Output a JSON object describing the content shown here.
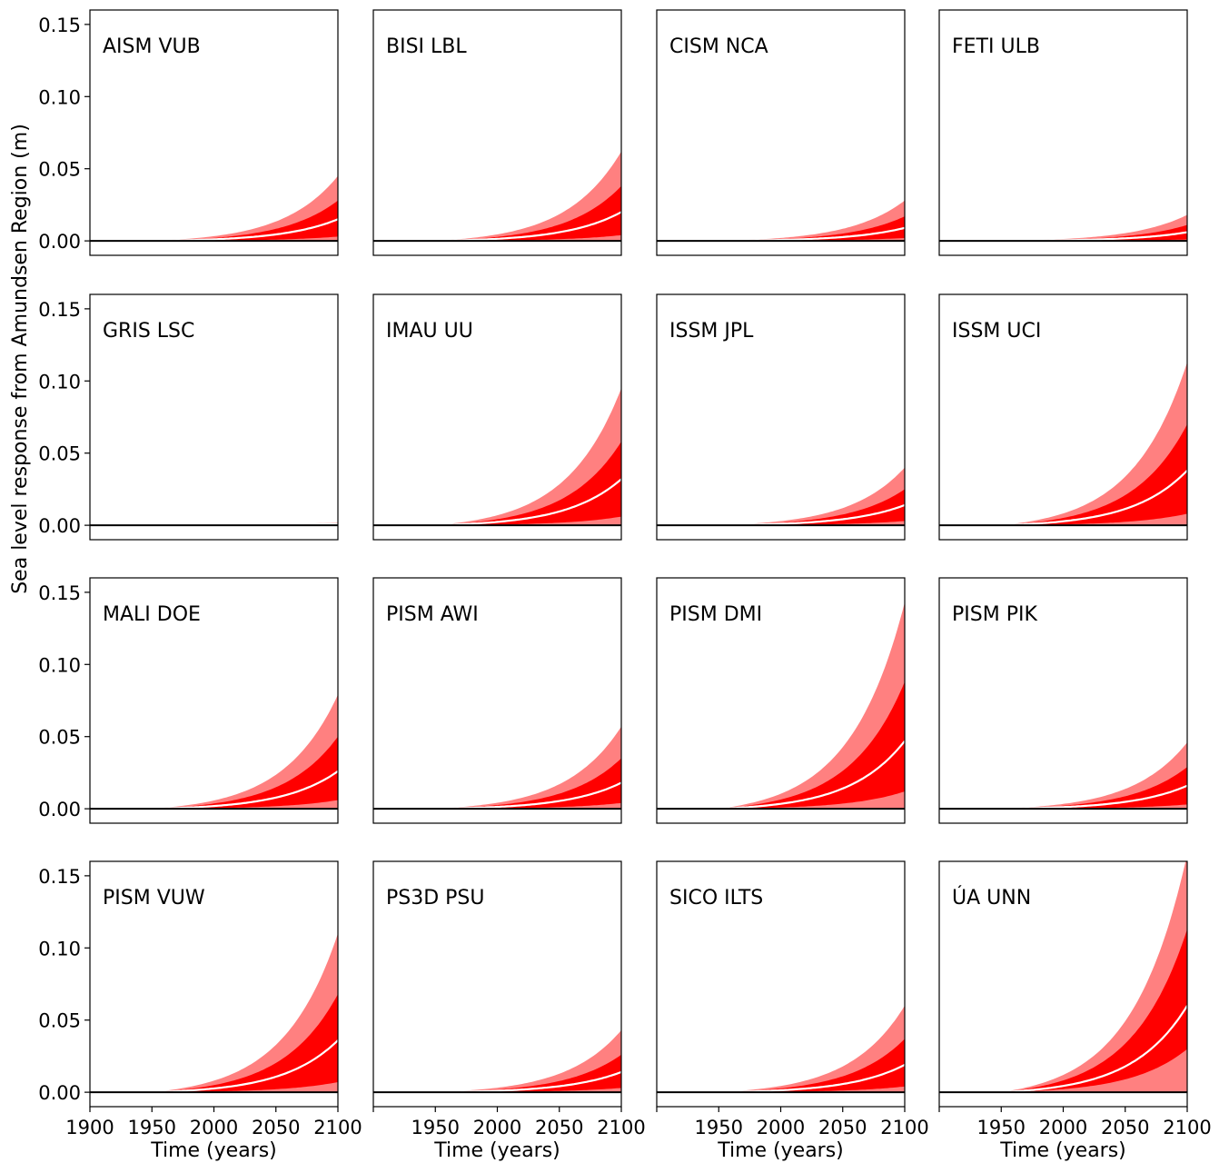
{
  "figure": {
    "ylabel": "Sea level response from Amundsen Region (m)",
    "xlabel": "Time (years)",
    "colors": {
      "outer_band": "#ff8080",
      "inner_band": "#ff0000",
      "median": "#ffffff",
      "zero_line": "#000000"
    }
  },
  "chart_data": {
    "type": "area",
    "layout": "4x4 grid of panels",
    "x_ticks": [
      1900,
      1950,
      2000,
      2050,
      2100
    ],
    "y_ticks": [
      "0.00",
      "0.05",
      "0.10",
      "0.15"
    ],
    "xlim": [
      1900,
      2100
    ],
    "ylim": [
      -0.01,
      0.16
    ],
    "growth_note": "values at 2100 listed; curves grow roughly exponentially from ~0 near 1950",
    "panels": [
      {
        "label": "AISM VUB",
        "median_2100": 0.015,
        "inner_2100": [
          0.003,
          0.028
        ],
        "outer_2100": [
          0.0,
          0.045
        ]
      },
      {
        "label": "BISI LBL",
        "median_2100": 0.02,
        "inner_2100": [
          0.004,
          0.038
        ],
        "outer_2100": [
          0.0,
          0.062
        ]
      },
      {
        "label": "CISM NCA",
        "median_2100": 0.009,
        "inner_2100": [
          0.002,
          0.017
        ],
        "outer_2100": [
          0.0,
          0.028
        ]
      },
      {
        "label": "FETI ULB",
        "median_2100": 0.006,
        "inner_2100": [
          0.001,
          0.011
        ],
        "outer_2100": [
          0.0,
          0.018
        ]
      },
      {
        "label": "GRIS LSC",
        "median_2100": 0.001,
        "inner_2100": [
          0.0,
          0.001
        ],
        "outer_2100": [
          0.0,
          0.002
        ]
      },
      {
        "label": "IMAU UU",
        "median_2100": 0.032,
        "inner_2100": [
          0.006,
          0.058
        ],
        "outer_2100": [
          0.0,
          0.095
        ]
      },
      {
        "label": "ISSM JPL",
        "median_2100": 0.014,
        "inner_2100": [
          0.003,
          0.025
        ],
        "outer_2100": [
          0.0,
          0.04
        ]
      },
      {
        "label": "ISSM UCI",
        "median_2100": 0.038,
        "inner_2100": [
          0.008,
          0.07
        ],
        "outer_2100": [
          0.0,
          0.113
        ]
      },
      {
        "label": "MALI DOE",
        "median_2100": 0.026,
        "inner_2100": [
          0.006,
          0.05
        ],
        "outer_2100": [
          0.0,
          0.079
        ]
      },
      {
        "label": "PISM AWI",
        "median_2100": 0.018,
        "inner_2100": [
          0.004,
          0.035
        ],
        "outer_2100": [
          0.0,
          0.057
        ]
      },
      {
        "label": "PISM DMI",
        "median_2100": 0.047,
        "inner_2100": [
          0.012,
          0.088
        ],
        "outer_2100": [
          0.0,
          0.143
        ]
      },
      {
        "label": "PISM PIK",
        "median_2100": 0.016,
        "inner_2100": [
          0.003,
          0.029
        ],
        "outer_2100": [
          0.0,
          0.046
        ]
      },
      {
        "label": "PISM VUW",
        "median_2100": 0.036,
        "inner_2100": [
          0.007,
          0.068
        ],
        "outer_2100": [
          0.0,
          0.11
        ]
      },
      {
        "label": "PS3D PSU",
        "median_2100": 0.014,
        "inner_2100": [
          0.003,
          0.026
        ],
        "outer_2100": [
          0.0,
          0.043
        ]
      },
      {
        "label": "SICO ILTS",
        "median_2100": 0.019,
        "inner_2100": [
          0.004,
          0.037
        ],
        "outer_2100": [
          0.0,
          0.06
        ]
      },
      {
        "label": "ÚA UNN",
        "median_2100": 0.06,
        "inner_2100": [
          0.03,
          0.113
        ],
        "outer_2100": [
          0.0,
          0.165
        ]
      }
    ]
  }
}
